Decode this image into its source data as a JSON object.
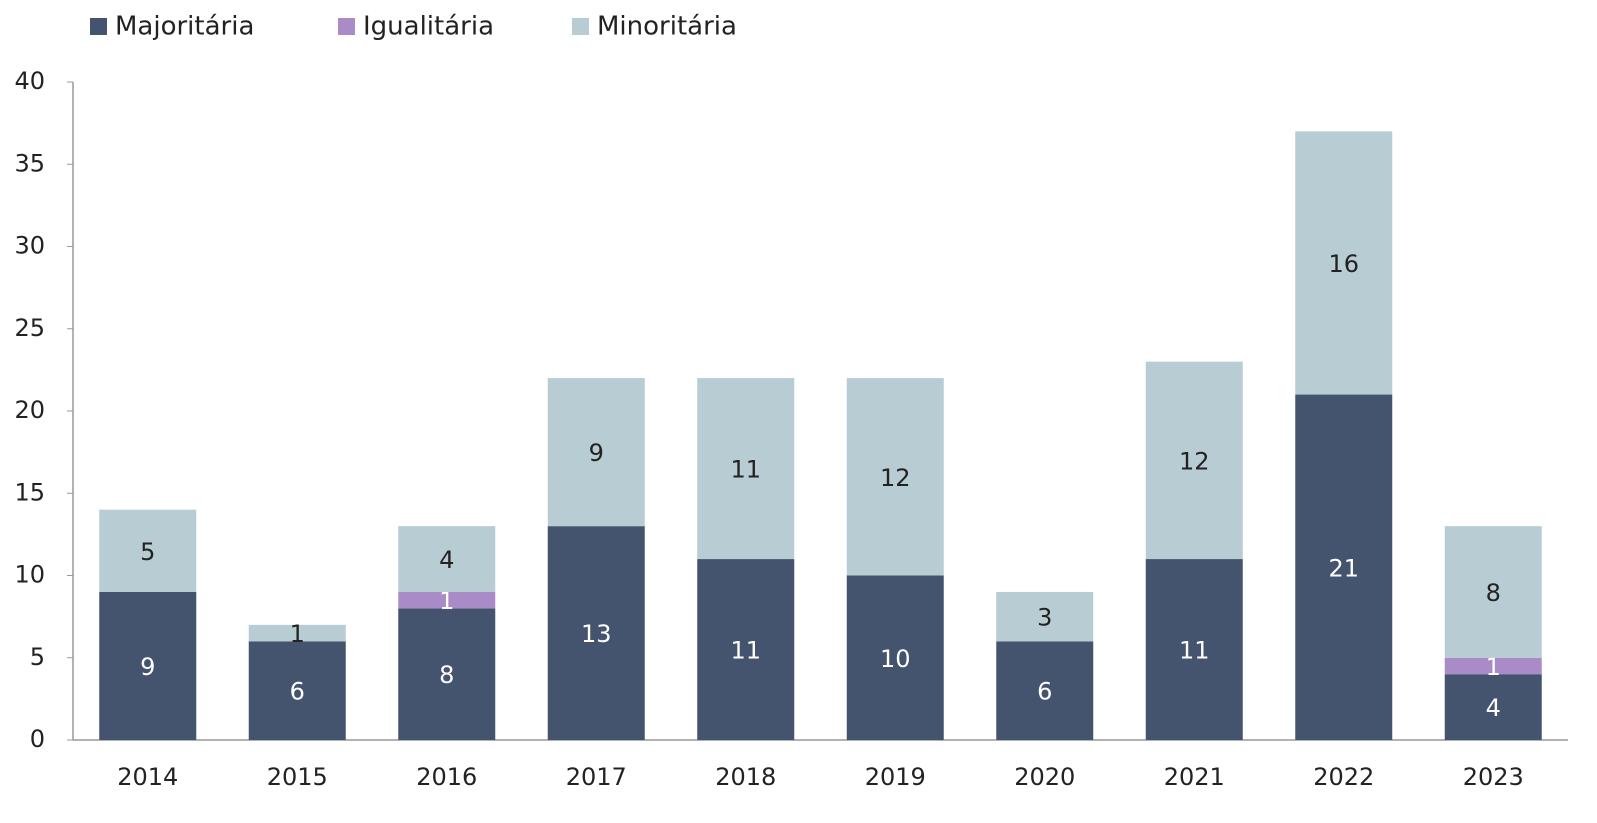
{
  "chart_data": {
    "type": "stacked_bar",
    "categories": [
      "2014",
      "2015",
      "2016",
      "2017",
      "2018",
      "2019",
      "2020",
      "2021",
      "2022",
      "2023"
    ],
    "series": [
      {
        "name": "Majoritária",
        "color": "#44546f",
        "values": [
          9,
          6,
          8,
          13,
          11,
          10,
          6,
          11,
          21,
          4
        ]
      },
      {
        "name": "Igualitária",
        "color": "#a98bc8",
        "values": [
          0,
          0,
          1,
          0,
          0,
          0,
          0,
          0,
          0,
          1
        ]
      },
      {
        "name": "Minoritária",
        "color": "#b8ccd3",
        "values": [
          5,
          1,
          4,
          9,
          11,
          12,
          3,
          12,
          16,
          8
        ]
      }
    ],
    "ylim": [
      0,
      40
    ],
    "yticks": [
      0,
      5,
      10,
      15,
      20,
      25,
      30,
      35,
      40
    ],
    "legend": "top-left"
  }
}
